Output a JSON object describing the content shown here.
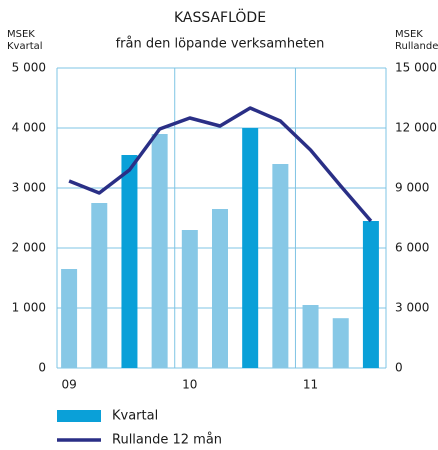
{
  "chart_data": {
    "type": "bar_line",
    "title": "KASSAFLÖDE",
    "subtitle": "från den löpande verksamheten",
    "ylabel": [
      "MSEK",
      "Kvartal"
    ],
    "y2label": [
      "MSEK",
      "Rullande"
    ],
    "categories": [
      "09",
      null,
      null,
      null,
      "10",
      null,
      null,
      null,
      "11",
      null,
      null
    ],
    "series": [
      {
        "name": "Kvartal",
        "type": "bar",
        "color": "#0aa0d8",
        "colors": [
          "#87c8e6",
          "#87c8e6",
          "#0aa0d8",
          "#87c8e6",
          "#87c8e6",
          "#87c8e6",
          "#0aa0d8",
          "#87c8e6",
          "#87c8e6",
          "#87c8e6",
          "#0aa0d8"
        ],
        "values": [
          1650,
          2750,
          3550,
          3900,
          2300,
          2650,
          4000,
          3400,
          1050,
          830,
          2450
        ]
      },
      {
        "name": "Rullande 12 mån",
        "type": "line",
        "axis": "y2",
        "color": "#2a2f86",
        "values": [
          9350,
          8750,
          9900,
          11950,
          12500,
          12100,
          13000,
          12350,
          10900,
          9100,
          7350
        ]
      }
    ],
    "ylim": [
      0,
      5000
    ],
    "yticks": [
      0,
      {
        "value": 1000,
        "label": "1 000"
      },
      {
        "value": 2000,
        "label": "2 000"
      },
      {
        "value": 3000,
        "label": "3 000"
      },
      {
        "value": 4000,
        "label": "4 000"
      },
      {
        "value": 5000,
        "label": "5 000"
      }
    ],
    "y2lim": [
      0,
      15000
    ],
    "y2ticks": [
      0,
      {
        "value": 3000,
        "label": "3 000"
      },
      {
        "value": 6000,
        "label": "6 000"
      },
      {
        "value": 9000,
        "label": "9 000"
      },
      {
        "value": 12000,
        "label": "12 000"
      },
      {
        "value": 15000,
        "label": "15 000"
      }
    ],
    "grid": true
  }
}
